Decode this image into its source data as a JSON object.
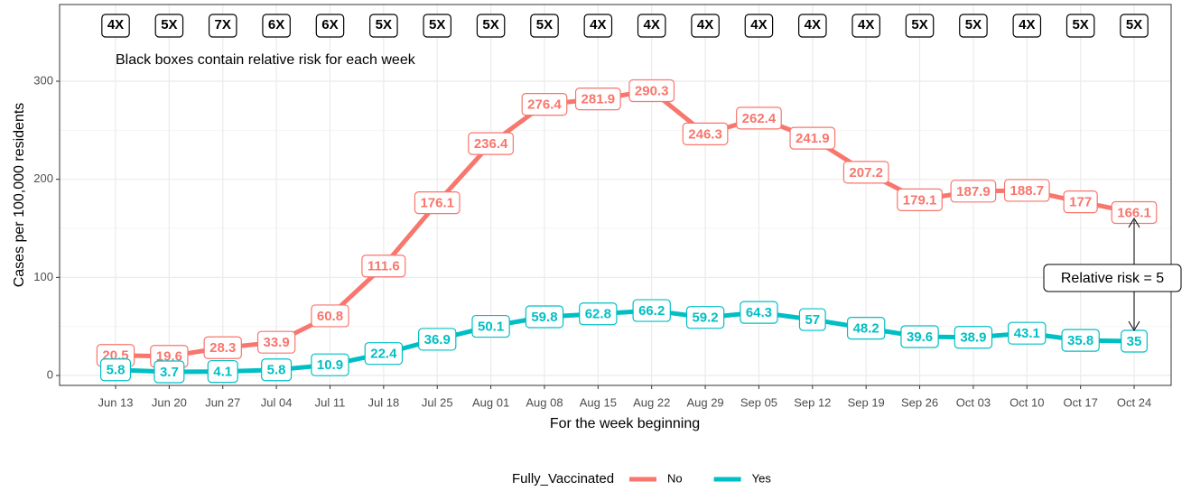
{
  "chart_data": {
    "type": "line",
    "categories": [
      "Jun 13",
      "Jun 20",
      "Jun 27",
      "Jul 04",
      "Jul 11",
      "Jul 18",
      "Jul 25",
      "Aug 01",
      "Aug 08",
      "Aug 15",
      "Aug 22",
      "Aug 29",
      "Sep 05",
      "Sep 12",
      "Sep 19",
      "Sep 26",
      "Oct 03",
      "Oct 10",
      "Oct 17",
      "Oct 24"
    ],
    "series": [
      {
        "name": "No",
        "color": "#f8766d",
        "values": [
          20.5,
          19.6,
          28.3,
          33.9,
          60.8,
          111.6,
          176.1,
          236.4,
          276.4,
          281.9,
          290.3,
          246.3,
          262.4,
          241.9,
          207.2,
          179.1,
          187.9,
          188.7,
          177,
          166.1
        ]
      },
      {
        "name": "Yes",
        "color": "#00bfc4",
        "values": [
          5.8,
          3.7,
          4.1,
          5.8,
          10.9,
          22.4,
          36.9,
          50.1,
          59.8,
          62.8,
          66.2,
          59.2,
          64.3,
          57,
          48.2,
          39.6,
          38.9,
          43.1,
          35.8,
          35
        ]
      }
    ],
    "risk_labels": [
      "4X",
      "5X",
      "7X",
      "6X",
      "6X",
      "5X",
      "5X",
      "5X",
      "5X",
      "4X",
      "4X",
      "4X",
      "4X",
      "4X",
      "4X",
      "5X",
      "5X",
      "4X",
      "5X",
      "5X"
    ],
    "annotations": [
      "Black boxes contain relative risk for each week",
      "Relative risk = 5"
    ],
    "xlabel": "For the week beginning",
    "ylabel": "Cases per 100,000 residents",
    "legend_title": "Fully_Vaccinated",
    "ylim": [
      -10.1,
      378.2
    ],
    "yticks": [
      0,
      100,
      200,
      300
    ],
    "grid": true
  }
}
